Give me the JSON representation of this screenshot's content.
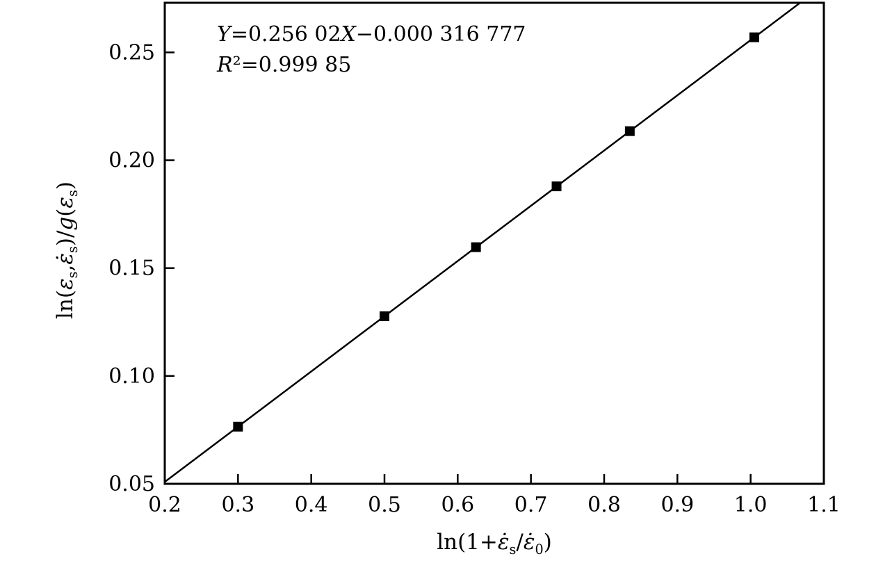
{
  "chart_data": {
    "type": "scatter",
    "title": "",
    "xlabel": "ln(1+ε̇_s/ε̇_0)",
    "ylabel": "ln(ε_s,ε̇_s)/g(ε_s)",
    "xlim": [
      0.2,
      1.1
    ],
    "ylim": [
      0.05,
      0.273
    ],
    "x_ticks": [
      0.2,
      0.3,
      0.4,
      0.5,
      0.6,
      0.7,
      0.8,
      0.9,
      1.0,
      1.1
    ],
    "x_tick_labels": [
      "0.2",
      "0.3",
      "0.4",
      "0.5",
      "0.6",
      "0.7",
      "0.8",
      "0.9",
      "1.0",
      "1.1"
    ],
    "y_ticks": [
      0.05,
      0.1,
      0.15,
      0.2,
      0.25
    ],
    "y_tick_labels": [
      "0.05",
      "0.10",
      "0.15",
      "0.20",
      "0.25"
    ],
    "points": {
      "x": [
        0.3,
        0.5,
        0.625,
        0.735,
        0.835,
        1.005
      ],
      "y": [
        0.0765,
        0.1277,
        0.1597,
        0.1879,
        0.2135,
        0.257
      ]
    },
    "fit_line": {
      "slope": 0.25602,
      "intercept": -0.000316777,
      "equation": "Y=0.256 02X−0.000 316 777",
      "r_squared": "R²=0.999 85"
    },
    "grid": false,
    "legend": null,
    "marker": {
      "shape": "square",
      "color": "#000000",
      "size": 14
    },
    "line_color": "#000000",
    "axis_color": "#000000",
    "background": "#ffffff"
  }
}
